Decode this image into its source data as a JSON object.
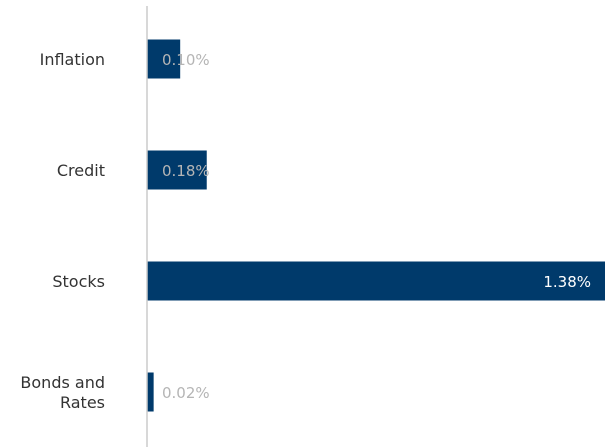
{
  "colors": {
    "bar": "#003a6b",
    "axis": "#cccccc",
    "label_inside": "#ffffff",
    "label_outside": "#b5b5b5",
    "category_text": "#333333"
  },
  "chart_data": {
    "type": "bar",
    "orientation": "horizontal",
    "categories": [
      "Inflation",
      "Credit",
      "Stocks",
      "Bonds and Rates"
    ],
    "values": [
      0.1,
      0.18,
      1.38,
      0.02
    ],
    "value_labels": [
      "0.10%",
      "0.18%",
      "1.38%",
      "0.02%"
    ],
    "title": "",
    "xlabel": "",
    "ylabel": "",
    "xlim": [
      0,
      1.38
    ],
    "grid": false,
    "legend": "none"
  }
}
